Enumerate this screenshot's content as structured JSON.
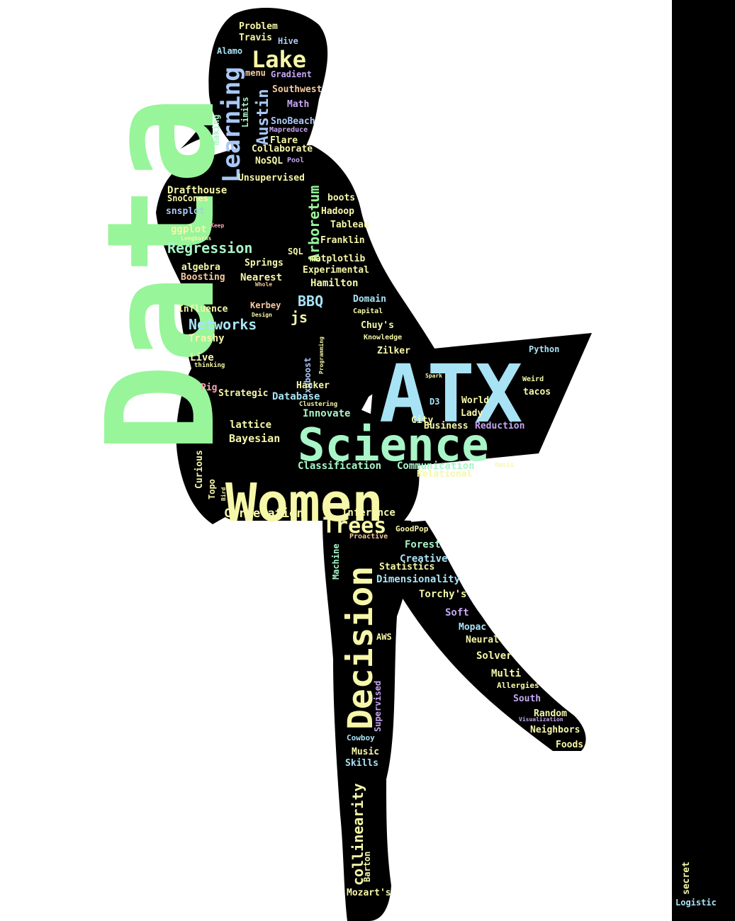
{
  "image": {
    "background": "#ffffff",
    "silhouette_color": "#000000",
    "palette": {
      "green": "#98f59a",
      "yellow": "#f6f7a8",
      "cyan": "#a7e3f5",
      "blue": "#a9c8f7",
      "lavender": "#c4a6f2",
      "peach": "#f6c9a0",
      "pink": "#f5a6b3",
      "mint": "#a8f5c8"
    }
  },
  "words": [
    {
      "text": "Data",
      "color": "green"
    },
    {
      "text": "ATX",
      "color": "cyan"
    },
    {
      "text": "Science",
      "color": "mint"
    },
    {
      "text": "Women",
      "color": "yellow"
    },
    {
      "text": "Decision",
      "color": "yellow"
    },
    {
      "text": "Learning",
      "color": "blue"
    },
    {
      "text": "Lake",
      "color": "yellow"
    },
    {
      "text": "Trees",
      "color": "yellow"
    },
    {
      "text": "Austin",
      "color": "blue"
    },
    {
      "text": "Arboretum",
      "color": "green"
    },
    {
      "text": "Regression",
      "color": "mint"
    },
    {
      "text": "Networks",
      "color": "cyan"
    },
    {
      "text": "BBQ",
      "color": "cyan"
    },
    {
      "text": "collinearity",
      "color": "yellow"
    },
    {
      "text": "Correlation",
      "color": "yellow"
    },
    {
      "text": "Classification",
      "color": "mint"
    },
    {
      "text": "Communication",
      "color": "mint"
    },
    {
      "text": "Relational",
      "color": "yellow"
    },
    {
      "text": "Inference",
      "color": "yellow"
    },
    {
      "text": "Bayesian",
      "color": "yellow"
    },
    {
      "text": "lattice",
      "color": "yellow"
    },
    {
      "text": "Business",
      "color": "yellow"
    },
    {
      "text": "Reduction",
      "color": "lavender"
    },
    {
      "text": "Problem",
      "color": "yellow"
    },
    {
      "text": "Travis",
      "color": "yellow"
    },
    {
      "text": "Hive",
      "color": "blue"
    },
    {
      "text": "Alamo",
      "color": "cyan"
    },
    {
      "text": "menu",
      "color": "peach"
    },
    {
      "text": "Gradient",
      "color": "lavender"
    },
    {
      "text": "Southwest",
      "color": "peach"
    },
    {
      "text": "Limits",
      "color": "mint"
    },
    {
      "text": "Math",
      "color": "lavender"
    },
    {
      "text": "SnoBeach",
      "color": "blue"
    },
    {
      "text": "Mapreduce",
      "color": "lavender"
    },
    {
      "text": "making",
      "color": "mint"
    },
    {
      "text": "Flare",
      "color": "yellow"
    },
    {
      "text": "Collaborate",
      "color": "yellow"
    },
    {
      "text": "NoSQL",
      "color": "yellow"
    },
    {
      "text": "Pool",
      "color": "lavender"
    },
    {
      "text": "Unsupervised",
      "color": "yellow"
    },
    {
      "text": "Drafthouse",
      "color": "yellow"
    },
    {
      "text": "SnoCones",
      "color": "yellow"
    },
    {
      "text": "boots",
      "color": "yellow"
    },
    {
      "text": "snsplot",
      "color": "blue"
    },
    {
      "text": "Hadoop",
      "color": "yellow"
    },
    {
      "text": "ggplot",
      "color": "yellow"
    },
    {
      "text": "Keep",
      "color": "pink"
    },
    {
      "text": "Tableau",
      "color": "yellow"
    },
    {
      "text": "Longhorns",
      "color": "yellow"
    },
    {
      "text": "Franklin",
      "color": "yellow"
    },
    {
      "text": "SQL",
      "color": "yellow"
    },
    {
      "text": "matplotlib",
      "color": "yellow"
    },
    {
      "text": "Springs",
      "color": "yellow"
    },
    {
      "text": "algebra",
      "color": "yellow"
    },
    {
      "text": "Experimental",
      "color": "yellow"
    },
    {
      "text": "Boosting",
      "color": "peach"
    },
    {
      "text": "Nearest",
      "color": "yellow"
    },
    {
      "text": "Whole",
      "color": "peach"
    },
    {
      "text": "Hamilton",
      "color": "yellow"
    },
    {
      "text": "Domain",
      "color": "cyan"
    },
    {
      "text": "Influence",
      "color": "yellow"
    },
    {
      "text": "Kerbey",
      "color": "peach"
    },
    {
      "text": "Design",
      "color": "yellow"
    },
    {
      "text": "Capital",
      "color": "yellow"
    },
    {
      "text": "js",
      "color": "yellow"
    },
    {
      "text": "Chuy's",
      "color": "yellow"
    },
    {
      "text": "Knowledge",
      "color": "yellow"
    },
    {
      "text": "Trashy",
      "color": "yellow"
    },
    {
      "text": "Zilker",
      "color": "yellow"
    },
    {
      "text": "Python",
      "color": "cyan"
    },
    {
      "text": "Live",
      "color": "yellow"
    },
    {
      "text": "thinking",
      "color": "yellow"
    },
    {
      "text": "xgboost",
      "color": "blue"
    },
    {
      "text": "Programming",
      "color": "yellow"
    },
    {
      "text": "Spark",
      "color": "yellow"
    },
    {
      "text": "Weird",
      "color": "yellow"
    },
    {
      "text": "Hacker",
      "color": "yellow"
    },
    {
      "text": "Pig",
      "color": "pink"
    },
    {
      "text": "Strategic",
      "color": "yellow"
    },
    {
      "text": "Clustering",
      "color": "yellow"
    },
    {
      "text": "Database",
      "color": "cyan"
    },
    {
      "text": "tacos",
      "color": "yellow"
    },
    {
      "text": "D3",
      "color": "cyan"
    },
    {
      "text": "World",
      "color": "yellow"
    },
    {
      "text": "Innovate",
      "color": "mint"
    },
    {
      "text": "Lady",
      "color": "yellow"
    },
    {
      "text": "City",
      "color": "yellow"
    },
    {
      "text": "Curious",
      "color": "yellow"
    },
    {
      "text": "Oasis",
      "color": "yellow"
    },
    {
      "text": "Topo",
      "color": "yellow"
    },
    {
      "text": "Bird",
      "color": "yellow"
    },
    {
      "text": "GoodPop",
      "color": "yellow"
    },
    {
      "text": "Proactive",
      "color": "peach"
    },
    {
      "text": "Forest",
      "color": "mint"
    },
    {
      "text": "Machine",
      "color": "mint"
    },
    {
      "text": "Creative",
      "color": "cyan"
    },
    {
      "text": "Statistics",
      "color": "yellow"
    },
    {
      "text": "Dimensionality",
      "color": "cyan"
    },
    {
      "text": "Torchy's",
      "color": "yellow"
    },
    {
      "text": "Soft",
      "color": "lavender"
    },
    {
      "text": "Mopac",
      "color": "cyan"
    },
    {
      "text": "AWS",
      "color": "yellow"
    },
    {
      "text": "Neural",
      "color": "yellow"
    },
    {
      "text": "Solver",
      "color": "yellow"
    },
    {
      "text": "Multi",
      "color": "yellow"
    },
    {
      "text": "Allergies",
      "color": "yellow"
    },
    {
      "text": "Supervised",
      "color": "lavender"
    },
    {
      "text": "South",
      "color": "lavender"
    },
    {
      "text": "Random",
      "color": "yellow"
    },
    {
      "text": "Visualization",
      "color": "lavender"
    },
    {
      "text": "Neighbors",
      "color": "yellow"
    },
    {
      "text": "Cowboy",
      "color": "cyan"
    },
    {
      "text": "Foods",
      "color": "yellow"
    },
    {
      "text": "Music",
      "color": "yellow"
    },
    {
      "text": "Skills",
      "color": "cyan"
    },
    {
      "text": "Barton",
      "color": "yellow"
    },
    {
      "text": "Mozart's",
      "color": "yellow"
    },
    {
      "text": "secret",
      "color": "yellow"
    },
    {
      "text": "Logistic",
      "color": "cyan"
    }
  ]
}
